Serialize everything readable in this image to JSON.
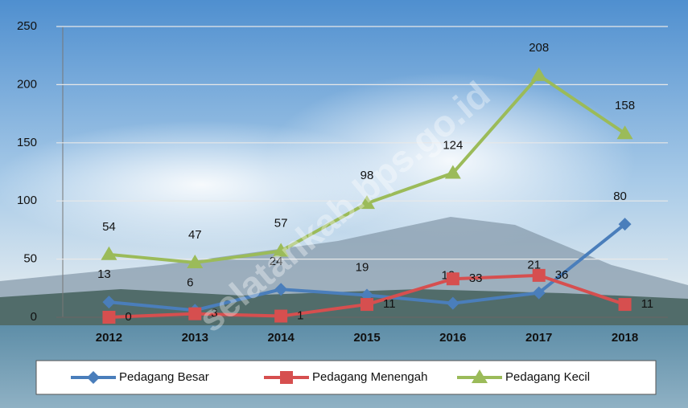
{
  "chart_data": {
    "type": "line",
    "categories": [
      "2012",
      "2013",
      "2014",
      "2015",
      "2016",
      "2017",
      "2018"
    ],
    "series": [
      {
        "name": "Pedagang Besar",
        "color": "#4a7ebb",
        "marker": "diamond",
        "values": [
          13,
          6,
          24,
          19,
          12,
          21,
          80
        ]
      },
      {
        "name": "Pedagang Menengah",
        "color": "#d64f4f",
        "marker": "square",
        "values": [
          0,
          3,
          1,
          11,
          33,
          36,
          11
        ]
      },
      {
        "name": "Pedagang Kecil",
        "color": "#9bbb59",
        "marker": "triangle",
        "values": [
          54,
          47,
          57,
          98,
          124,
          208,
          158
        ]
      }
    ],
    "ylim": [
      0,
      250
    ],
    "yticks": [
      0,
      50,
      100,
      150,
      200,
      250
    ],
    "grid": true,
    "legend": "bottom",
    "watermark": "selatankab.bps.go.id"
  }
}
